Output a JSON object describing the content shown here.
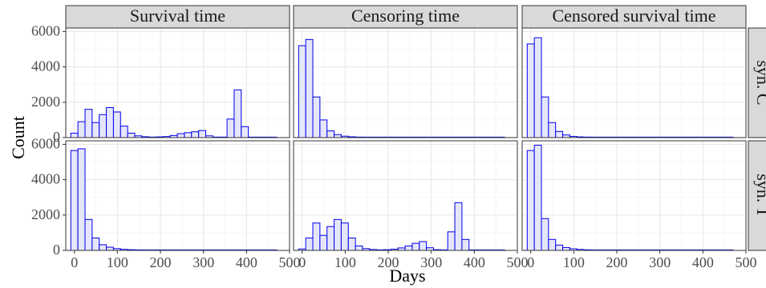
{
  "figure": {
    "xlabel": "Days",
    "ylabel": "Count"
  },
  "colors": {
    "bar_fill": "#e5e6f9",
    "bar_stroke": "#0000ee",
    "strip_fill": "#d9d9d9",
    "strip_stroke": "#333333",
    "panel_border": "#333333",
    "grid_major": "#e6e6e6",
    "grid_minor": "#f3f3f3"
  },
  "chart_data": {
    "type": "bar",
    "chart_kind": "faceted histogram",
    "columns": [
      "Survival time",
      "Censoring time",
      "Censored survival time"
    ],
    "rows": [
      "syn. C",
      "syn. T"
    ],
    "xlim": [
      -20,
      500
    ],
    "ylim": [
      0,
      6200
    ],
    "x_ticks": [
      0,
      100,
      200,
      300,
      400,
      500
    ],
    "y_ticks": [
      0,
      2000,
      4000,
      6000
    ],
    "bin_width": 16.5,
    "grid": true,
    "panels": [
      {
        "row": "syn. C",
        "column": "Survival time",
        "bins": [
          {
            "x": 0,
            "count": 250
          },
          {
            "x": 16.5,
            "count": 900
          },
          {
            "x": 33,
            "count": 1600
          },
          {
            "x": 49.5,
            "count": 850
          },
          {
            "x": 66,
            "count": 1300
          },
          {
            "x": 82.5,
            "count": 1700
          },
          {
            "x": 99,
            "count": 1450
          },
          {
            "x": 115.5,
            "count": 650
          },
          {
            "x": 132,
            "count": 250
          },
          {
            "x": 148.5,
            "count": 100
          },
          {
            "x": 165,
            "count": 50
          },
          {
            "x": 181.5,
            "count": 30
          },
          {
            "x": 198,
            "count": 40
          },
          {
            "x": 214.5,
            "count": 60
          },
          {
            "x": 231,
            "count": 120
          },
          {
            "x": 247.5,
            "count": 220
          },
          {
            "x": 264,
            "count": 280
          },
          {
            "x": 280.5,
            "count": 330
          },
          {
            "x": 297,
            "count": 400
          },
          {
            "x": 313.5,
            "count": 100
          },
          {
            "x": 330,
            "count": 30
          },
          {
            "x": 346.5,
            "count": 30
          },
          {
            "x": 363,
            "count": 1050
          },
          {
            "x": 379.5,
            "count": 2700
          },
          {
            "x": 396,
            "count": 620
          },
          {
            "x": 412.5,
            "count": 15
          },
          {
            "x": 429,
            "count": 10
          },
          {
            "x": 445.5,
            "count": 10
          },
          {
            "x": 462,
            "count": 10
          }
        ]
      },
      {
        "row": "syn. C",
        "column": "Censoring time",
        "bins": [
          {
            "x": 0,
            "count": 5200
          },
          {
            "x": 16.5,
            "count": 5550
          },
          {
            "x": 33,
            "count": 2300
          },
          {
            "x": 49.5,
            "count": 1000
          },
          {
            "x": 66,
            "count": 380
          },
          {
            "x": 82.5,
            "count": 170
          },
          {
            "x": 99,
            "count": 80
          },
          {
            "x": 115.5,
            "count": 45
          },
          {
            "x": 132,
            "count": 30
          },
          {
            "x": 148.5,
            "count": 25
          },
          {
            "x": 165,
            "count": 20
          },
          {
            "x": 181.5,
            "count": 15
          },
          {
            "x": 198,
            "count": 12
          },
          {
            "x": 214.5,
            "count": 10
          },
          {
            "x": 231,
            "count": 10
          },
          {
            "x": 247.5,
            "count": 10
          },
          {
            "x": 264,
            "count": 10
          },
          {
            "x": 280.5,
            "count": 10
          },
          {
            "x": 297,
            "count": 10
          },
          {
            "x": 313.5,
            "count": 10
          },
          {
            "x": 330,
            "count": 10
          },
          {
            "x": 346.5,
            "count": 10
          },
          {
            "x": 363,
            "count": 10
          },
          {
            "x": 379.5,
            "count": 10
          },
          {
            "x": 396,
            "count": 10
          },
          {
            "x": 412.5,
            "count": 10
          },
          {
            "x": 429,
            "count": 10
          },
          {
            "x": 445.5,
            "count": 10
          },
          {
            "x": 462,
            "count": 10
          }
        ]
      },
      {
        "row": "syn. C",
        "column": "Censored survival time",
        "bins": [
          {
            "x": 0,
            "count": 5300
          },
          {
            "x": 16.5,
            "count": 5650
          },
          {
            "x": 33,
            "count": 2300
          },
          {
            "x": 49.5,
            "count": 850
          },
          {
            "x": 66,
            "count": 350
          },
          {
            "x": 82.5,
            "count": 150
          },
          {
            "x": 99,
            "count": 70
          },
          {
            "x": 115.5,
            "count": 40
          },
          {
            "x": 132,
            "count": 30
          },
          {
            "x": 148.5,
            "count": 20
          },
          {
            "x": 165,
            "count": 15
          },
          {
            "x": 181.5,
            "count": 10
          },
          {
            "x": 198,
            "count": 10
          },
          {
            "x": 214.5,
            "count": 10
          },
          {
            "x": 231,
            "count": 10
          },
          {
            "x": 247.5,
            "count": 10
          },
          {
            "x": 264,
            "count": 10
          },
          {
            "x": 280.5,
            "count": 10
          },
          {
            "x": 297,
            "count": 10
          },
          {
            "x": 313.5,
            "count": 10
          },
          {
            "x": 330,
            "count": 10
          },
          {
            "x": 346.5,
            "count": 10
          },
          {
            "x": 363,
            "count": 10
          },
          {
            "x": 379.5,
            "count": 10
          },
          {
            "x": 396,
            "count": 10
          },
          {
            "x": 412.5,
            "count": 10
          },
          {
            "x": 429,
            "count": 10
          },
          {
            "x": 445.5,
            "count": 10
          },
          {
            "x": 462,
            "count": 10
          }
        ]
      },
      {
        "row": "syn. T",
        "column": "Survival time",
        "bins": [
          {
            "x": 0,
            "count": 5650
          },
          {
            "x": 16.5,
            "count": 5750
          },
          {
            "x": 33,
            "count": 1750
          },
          {
            "x": 49.5,
            "count": 700
          },
          {
            "x": 66,
            "count": 320
          },
          {
            "x": 82.5,
            "count": 180
          },
          {
            "x": 99,
            "count": 100
          },
          {
            "x": 115.5,
            "count": 60
          },
          {
            "x": 132,
            "count": 40
          },
          {
            "x": 148.5,
            "count": 30
          },
          {
            "x": 165,
            "count": 20
          },
          {
            "x": 181.5,
            "count": 15
          },
          {
            "x": 198,
            "count": 12
          },
          {
            "x": 214.5,
            "count": 10
          },
          {
            "x": 231,
            "count": 10
          },
          {
            "x": 247.5,
            "count": 10
          },
          {
            "x": 264,
            "count": 10
          },
          {
            "x": 280.5,
            "count": 10
          },
          {
            "x": 297,
            "count": 10
          },
          {
            "x": 313.5,
            "count": 10
          },
          {
            "x": 330,
            "count": 10
          },
          {
            "x": 346.5,
            "count": 10
          },
          {
            "x": 363,
            "count": 10
          },
          {
            "x": 379.5,
            "count": 10
          },
          {
            "x": 396,
            "count": 10
          },
          {
            "x": 412.5,
            "count": 15
          },
          {
            "x": 429,
            "count": 10
          },
          {
            "x": 445.5,
            "count": 10
          },
          {
            "x": 462,
            "count": 10
          }
        ]
      },
      {
        "row": "syn. T",
        "column": "Censoring time",
        "bins": [
          {
            "x": 0,
            "count": 80
          },
          {
            "x": 16.5,
            "count": 700
          },
          {
            "x": 33,
            "count": 1550
          },
          {
            "x": 49.5,
            "count": 850
          },
          {
            "x": 66,
            "count": 1350
          },
          {
            "x": 82.5,
            "count": 1750
          },
          {
            "x": 99,
            "count": 1550
          },
          {
            "x": 115.5,
            "count": 700
          },
          {
            "x": 132,
            "count": 250
          },
          {
            "x": 148.5,
            "count": 100
          },
          {
            "x": 165,
            "count": 50
          },
          {
            "x": 181.5,
            "count": 30
          },
          {
            "x": 198,
            "count": 40
          },
          {
            "x": 214.5,
            "count": 70
          },
          {
            "x": 231,
            "count": 140
          },
          {
            "x": 247.5,
            "count": 250
          },
          {
            "x": 264,
            "count": 400
          },
          {
            "x": 280.5,
            "count": 500
          },
          {
            "x": 297,
            "count": 150
          },
          {
            "x": 313.5,
            "count": 40
          },
          {
            "x": 330,
            "count": 30
          },
          {
            "x": 346.5,
            "count": 1050
          },
          {
            "x": 363,
            "count": 2700
          },
          {
            "x": 379.5,
            "count": 620
          },
          {
            "x": 396,
            "count": 15
          },
          {
            "x": 412.5,
            "count": 10
          },
          {
            "x": 429,
            "count": 10
          },
          {
            "x": 445.5,
            "count": 10
          },
          {
            "x": 462,
            "count": 10
          }
        ]
      },
      {
        "row": "syn. T",
        "column": "Censored survival time",
        "bins": [
          {
            "x": 0,
            "count": 5650
          },
          {
            "x": 16.5,
            "count": 5950
          },
          {
            "x": 33,
            "count": 1800
          },
          {
            "x": 49.5,
            "count": 620
          },
          {
            "x": 66,
            "count": 300
          },
          {
            "x": 82.5,
            "count": 160
          },
          {
            "x": 99,
            "count": 90
          },
          {
            "x": 115.5,
            "count": 55
          },
          {
            "x": 132,
            "count": 35
          },
          {
            "x": 148.5,
            "count": 25
          },
          {
            "x": 165,
            "count": 20
          },
          {
            "x": 181.5,
            "count": 15
          },
          {
            "x": 198,
            "count": 12
          },
          {
            "x": 214.5,
            "count": 10
          },
          {
            "x": 231,
            "count": 10
          },
          {
            "x": 247.5,
            "count": 10
          },
          {
            "x": 264,
            "count": 10
          },
          {
            "x": 280.5,
            "count": 10
          },
          {
            "x": 297,
            "count": 10
          },
          {
            "x": 313.5,
            "count": 10
          },
          {
            "x": 330,
            "count": 10
          },
          {
            "x": 346.5,
            "count": 15
          },
          {
            "x": 363,
            "count": 10
          },
          {
            "x": 379.5,
            "count": 10
          },
          {
            "x": 396,
            "count": 10
          },
          {
            "x": 412.5,
            "count": 10
          },
          {
            "x": 429,
            "count": 10
          },
          {
            "x": 445.5,
            "count": 10
          },
          {
            "x": 462,
            "count": 10
          }
        ]
      }
    ]
  }
}
